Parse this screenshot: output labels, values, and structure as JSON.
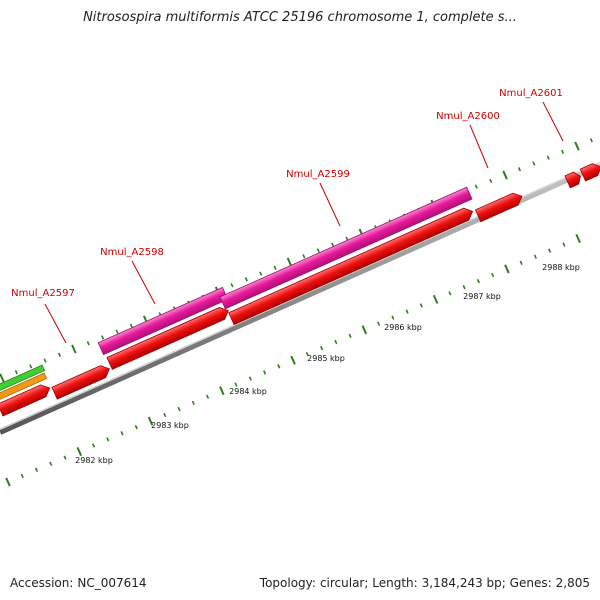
{
  "title": "Nitrosospira multiformis ATCC 25196 chromosome 1, complete s...",
  "footer": {
    "accession_label": "Accession:",
    "accession_value": "NC_007614",
    "topology_label": "Topology:",
    "topology_value": "circular;",
    "length_label": "Length:",
    "length_value": "3,184,243 bp;",
    "genes_label": "Genes:",
    "genes_value": "2,805"
  },
  "kbp_labels": [
    "2982 kbp",
    "2983 kbp",
    "2984 kbp",
    "2985 kbp",
    "2986 kbp",
    "2987 kbp",
    "2988 kbp"
  ],
  "genes": [
    {
      "locus": "Nmul_A2597"
    },
    {
      "locus": "Nmul_A2598"
    },
    {
      "locus": "Nmul_A2599"
    },
    {
      "locus": "Nmul_A2600"
    },
    {
      "locus": "Nmul_A2601"
    }
  ],
  "colors": {
    "backbone": "#8c8c8c",
    "cds": "#ee1111",
    "gene": "#e8189a",
    "orange_feature": "#f09a1a",
    "green_feature": "#44cc33",
    "tick": "#2e7d1e",
    "gene_label": "#cc0000"
  }
}
